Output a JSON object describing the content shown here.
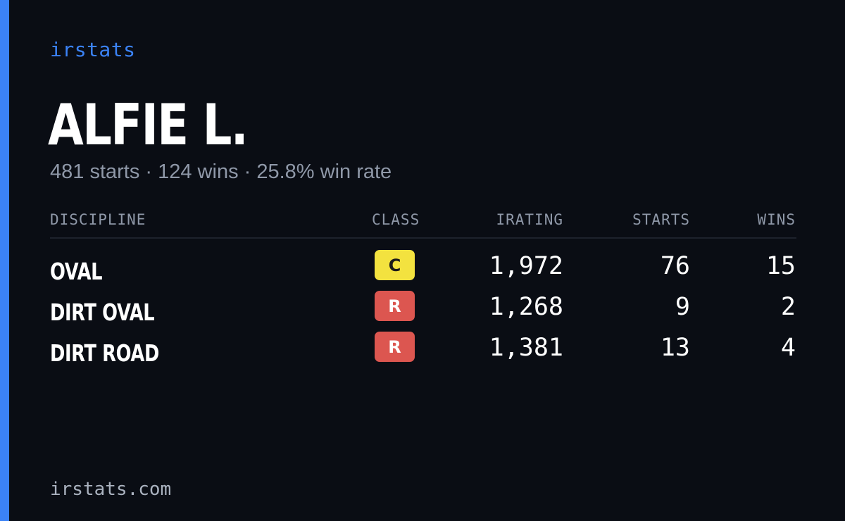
{
  "brand": "irstats",
  "driver": {
    "name": "ALFIE L.",
    "summary": "481 starts · 124 wins · 25.8% win rate"
  },
  "table": {
    "headers": {
      "discipline": "DISCIPLINE",
      "class": "CLASS",
      "irating": "IRATING",
      "starts": "STARTS",
      "wins": "WINS"
    },
    "rows": [
      {
        "discipline": "OVAL",
        "class": "C",
        "irating": "1,972",
        "starts": "76",
        "wins": "15"
      },
      {
        "discipline": "DIRT OVAL",
        "class": "R",
        "irating": "1,268",
        "starts": "9",
        "wins": "2"
      },
      {
        "discipline": "DIRT ROAD",
        "class": "R",
        "irating": "1,381",
        "starts": "13",
        "wins": "4"
      }
    ]
  },
  "footer": {
    "url": "irstats.com"
  },
  "colors": {
    "background": "#0a0d14",
    "accent": "#3b82f6",
    "class_c": "#f3e23f",
    "class_r": "#dc5650",
    "muted_text": "#8f98a8"
  }
}
